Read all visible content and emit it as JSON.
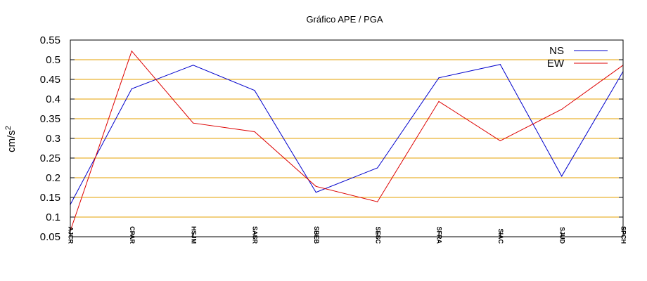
{
  "chart_data": {
    "type": "line",
    "title": "Gráfico  APE / PGA",
    "ylabel": "cm/s",
    "ylabel_superscript": "2",
    "xlabel": "",
    "categories": [
      "AJCR",
      "CPAR",
      "HSJM",
      "SASR",
      "SBEB",
      "SESC",
      "SFRA",
      "SIAC",
      "SJUD",
      "SPCH"
    ],
    "ylim": [
      0.05,
      0.55
    ],
    "yticks": [
      "0.05",
      "0.1",
      "0.15",
      "0.2",
      "0.25",
      "0.3",
      "0.35",
      "0.4",
      "0.45",
      "0.5",
      "0.55"
    ],
    "grid": true,
    "grid_color": "#e6a000",
    "legend_position": "top-right",
    "series": [
      {
        "name": "NS",
        "color": "#0000cc",
        "values": [
          0.132,
          0.426,
          0.486,
          0.422,
          0.163,
          0.225,
          0.454,
          0.488,
          0.204,
          0.47
        ]
      },
      {
        "name": "EW",
        "color": "#dd0000",
        "values": [
          0.065,
          0.522,
          0.339,
          0.317,
          0.178,
          0.139,
          0.394,
          0.294,
          0.374,
          0.486
        ]
      }
    ]
  }
}
